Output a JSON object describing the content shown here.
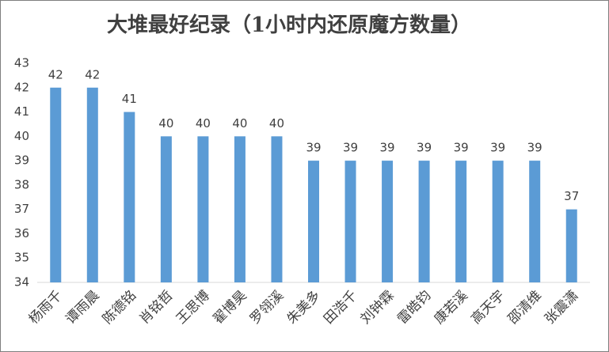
{
  "chart_data": {
    "type": "bar",
    "title": "大堆最好纪录（1小时内还原魔方数量）",
    "categories": [
      "杨雨千",
      "谭雨晨",
      "陈德铭",
      "肖铭哲",
      "王思博",
      "翟博昊",
      "罗翎溪",
      "朱美多",
      "田浩千",
      "刘钟霖",
      "雷皓钧",
      "康若溪",
      "高天宇",
      "邵清维",
      "张震潇"
    ],
    "values": [
      42,
      42,
      41,
      40,
      40,
      40,
      40,
      39,
      39,
      39,
      39,
      39,
      39,
      39,
      37
    ],
    "color": "#5b9bd5",
    "ylim": [
      34,
      43
    ],
    "yticks": [
      34,
      35,
      36,
      37,
      38,
      39,
      40,
      41,
      42,
      43
    ],
    "grid": false
  }
}
